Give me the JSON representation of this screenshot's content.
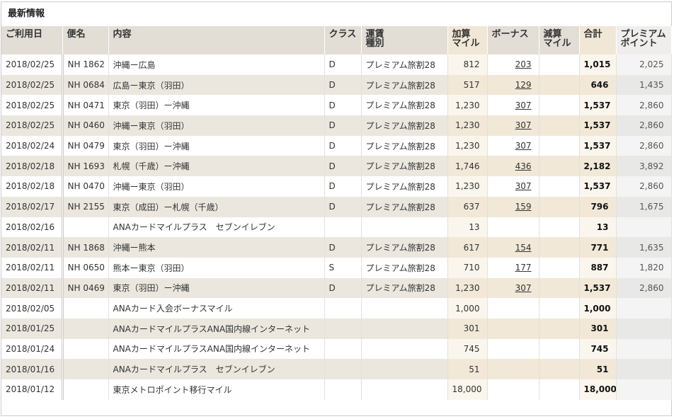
{
  "header": {
    "title": "最新情報"
  },
  "table": {
    "columns": [
      "ご利用日",
      "便名",
      "内容",
      "クラス",
      "運賃\n種別",
      "加算\nマイル",
      "ボーナス",
      "減算\nマイル",
      "合計",
      "プレミアム\nポイント"
    ],
    "rows": [
      [
        "2018/02/25",
        "NH 1862",
        "沖縄ー広島",
        "D",
        "プレミアム旅割28",
        "812",
        "203",
        null,
        "1,015",
        "2,025"
      ],
      [
        "2018/02/25",
        "NH 0684",
        "広島ー東京（羽田）",
        "D",
        "プレミアム旅割28",
        "517",
        "129",
        null,
        "646",
        "1,435"
      ],
      [
        "2018/02/25",
        "NH 0471",
        "東京（羽田）ー沖縄",
        "D",
        "プレミアム旅割28",
        "1,230",
        "307",
        null,
        "1,537",
        "2,860"
      ],
      [
        "2018/02/25",
        "NH 0460",
        "沖縄ー東京（羽田）",
        "D",
        "プレミアム旅割28",
        "1,230",
        "307",
        null,
        "1,537",
        "2,860"
      ],
      [
        "2018/02/24",
        "NH 0479",
        "東京（羽田）ー沖縄",
        "D",
        "プレミアム旅割28",
        "1,230",
        "307",
        null,
        "1,537",
        "2,860"
      ],
      [
        "2018/02/18",
        "NH 1693",
        "札幌（千歳）ー沖縄",
        "D",
        "プレミアム旅割28",
        "1,746",
        "436",
        null,
        "2,182",
        "3,892"
      ],
      [
        "2018/02/18",
        "NH 0470",
        "沖縄ー東京（羽田）",
        "D",
        "プレミアム旅割28",
        "1,230",
        "307",
        null,
        "1,537",
        "2,860"
      ],
      [
        "2018/02/17",
        "NH 2155",
        "東京（成田）ー札幌（千歳）",
        "D",
        "プレミアム旅割28",
        "637",
        "159",
        null,
        "796",
        "1,675"
      ],
      [
        "2018/02/16",
        null,
        "ANAカードマイルプラス　セブンイレブン",
        null,
        null,
        "13",
        null,
        null,
        "13",
        null
      ],
      [
        "2018/02/11",
        "NH 1868",
        "沖縄ー熊本",
        "D",
        "プレミアム旅割28",
        "617",
        "154",
        null,
        "771",
        "1,635"
      ],
      [
        "2018/02/11",
        "NH 0650",
        "熊本ー東京（羽田）",
        "S",
        "プレミアム旅割28",
        "710",
        "177",
        null,
        "887",
        "1,820"
      ],
      [
        "2018/02/11",
        "NH 0469",
        "東京（羽田）ー沖縄",
        "D",
        "プレミアム旅割28",
        "1,230",
        "307",
        null,
        "1,537",
        "2,860"
      ],
      [
        "2018/02/05",
        null,
        "ANAカード入会ボーナスマイル",
        null,
        null,
        "1,000",
        null,
        null,
        "1,000",
        null
      ],
      [
        "2018/01/25",
        null,
        "ANAカードマイルプラスANA国内線インターネット",
        null,
        null,
        "301",
        null,
        null,
        "301",
        null
      ],
      [
        "2018/01/24",
        null,
        "ANAカードマイルプラスANA国内線インターネット",
        null,
        null,
        "745",
        null,
        null,
        "745",
        null
      ],
      [
        "2018/01/16",
        null,
        "ANAカードマイルプラス　セブンイレブン",
        null,
        null,
        "51",
        null,
        null,
        "51",
        null
      ],
      [
        "2018/01/12",
        null,
        "東京メトロポイント移行マイル",
        null,
        null,
        "18,000",
        null,
        null,
        "18,000",
        null
      ]
    ]
  }
}
